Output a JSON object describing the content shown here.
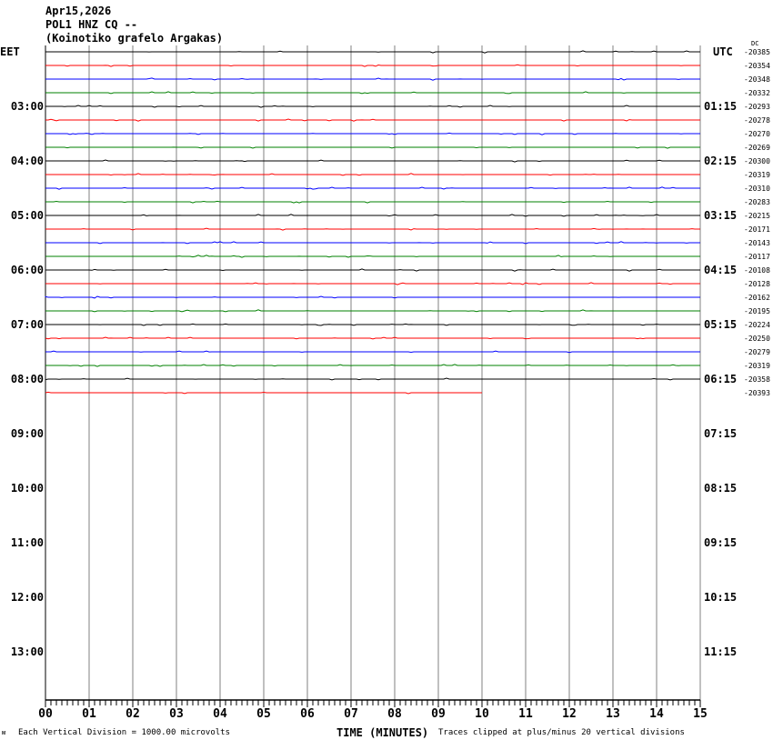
{
  "header": {
    "date": "Apr15,2026",
    "station": "POL1 HNZ CQ --",
    "name": "(Koinotiko grafelo Argakas)"
  },
  "chart_data": {
    "type": "line",
    "title": "Apr15,2026 POL1 HNZ CQ --",
    "left_timezone": "EET",
    "right_timezone": "UTC",
    "dc_label": "DC",
    "xlabel": "TIME (MINUTES)",
    "xlim": [
      0,
      15
    ],
    "x_ticks": [
      "00",
      "01",
      "02",
      "03",
      "04",
      "05",
      "06",
      "07",
      "08",
      "09",
      "10",
      "11",
      "12",
      "13",
      "14",
      "15"
    ],
    "left_hour_labels": [
      "03:00",
      "04:00",
      "05:00",
      "06:00",
      "07:00",
      "08:00",
      "09:00",
      "10:00",
      "11:00",
      "12:00",
      "13:00"
    ],
    "right_hour_labels": [
      "01:15",
      "02:15",
      "03:15",
      "04:15",
      "05:15",
      "06:15",
      "07:15",
      "08:15",
      "09:15",
      "10:15",
      "11:15"
    ],
    "trace_colors": [
      "#000000",
      "#ff0000",
      "#0000ff",
      "#008000"
    ],
    "grid": true,
    "dc_offsets": [
      "-20385",
      "-20354",
      "-20348",
      "-20332",
      "-20293",
      "-20278",
      "-20270",
      "-20269",
      "-20300",
      "-20319",
      "-20310",
      "-20283",
      "-20215",
      "-20171",
      "-20143",
      "-20117",
      "-20108",
      "-20128",
      "-20162",
      "-20195",
      "-20224",
      "-20250",
      "-20279",
      "-20319",
      "-20358",
      "-20393"
    ],
    "last_trace_end_minute": 10,
    "scale_note": "Each Vertical Division = 1000.00 microvolts",
    "clip_note": "Traces clipped at plus/minus 20 vertical divisions"
  }
}
